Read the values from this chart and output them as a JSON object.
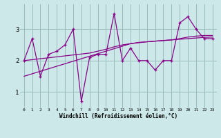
{
  "x": [
    0,
    1,
    2,
    3,
    4,
    5,
    6,
    7,
    8,
    9,
    10,
    11,
    12,
    13,
    14,
    15,
    16,
    17,
    18,
    19,
    20,
    21,
    22,
    23
  ],
  "y_main": [
    2.0,
    2.7,
    1.5,
    2.2,
    2.3,
    2.5,
    3.0,
    0.7,
    2.1,
    2.2,
    2.2,
    3.5,
    2.0,
    2.4,
    2.0,
    2.0,
    1.7,
    2.0,
    2.0,
    3.2,
    3.4,
    3.0,
    2.7,
    2.7
  ],
  "y_trend1": [
    1.5,
    1.58,
    1.66,
    1.74,
    1.82,
    1.9,
    1.98,
    2.06,
    2.14,
    2.22,
    2.3,
    2.38,
    2.46,
    2.54,
    2.58,
    2.6,
    2.62,
    2.64,
    2.66,
    2.68,
    2.7,
    2.72,
    2.74,
    2.75
  ],
  "y_trend2": [
    2.0,
    2.03,
    2.06,
    2.09,
    2.12,
    2.15,
    2.18,
    2.21,
    2.24,
    2.3,
    2.36,
    2.44,
    2.5,
    2.54,
    2.57,
    2.6,
    2.62,
    2.64,
    2.66,
    2.7,
    2.75,
    2.78,
    2.8,
    2.8
  ],
  "line_color": "#880088",
  "bg_color": "#cce8e8",
  "grid_color": "#99bbbb",
  "xlabel": "Windchill (Refroidissement éolien,°C)",
  "ylim": [
    0.5,
    3.8
  ],
  "xlim": [
    -0.5,
    23.5
  ],
  "yticks": [
    1,
    2,
    3
  ],
  "xticks": [
    0,
    1,
    2,
    3,
    4,
    5,
    6,
    7,
    8,
    9,
    10,
    11,
    12,
    13,
    14,
    15,
    16,
    17,
    18,
    19,
    20,
    21,
    22,
    23
  ],
  "figsize": [
    3.2,
    2.0
  ],
  "dpi": 100
}
